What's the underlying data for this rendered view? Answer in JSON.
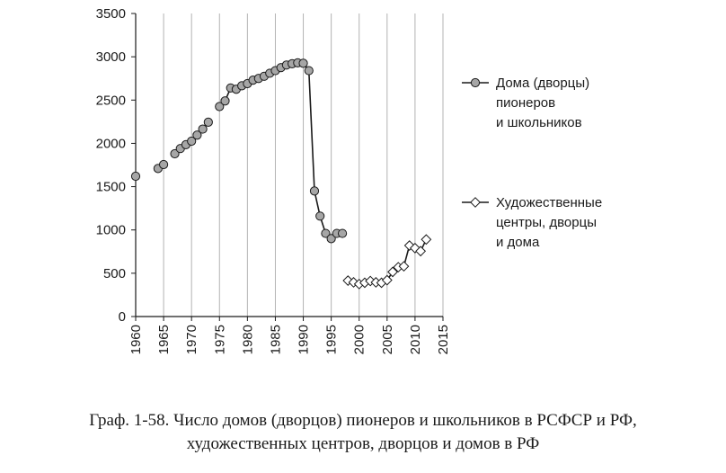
{
  "chart_data": {
    "type": "line",
    "title": "",
    "xlabel": "",
    "ylabel": "",
    "xlim": [
      1960,
      2015
    ],
    "ylim": [
      0,
      3500
    ],
    "xticks": [
      "1960",
      "1965",
      "1970",
      "1975",
      "1980",
      "1985",
      "1990",
      "1995",
      "2000",
      "2005",
      "2010",
      "2015"
    ],
    "yticks": [
      "0",
      "500",
      "1000",
      "1500",
      "2000",
      "2500",
      "3000",
      "3500"
    ],
    "grid": "vertical",
    "legend_placement": "right",
    "series": [
      {
        "name": "Дома (дворцы) пионеров и школьников",
        "legend_lines": [
          "Дома (дворцы)",
          "пионеров",
          "и школьников"
        ],
        "marker": "circle",
        "marker_fill": "#a6a6a6",
        "line_color": "#1a1a1a",
        "segments": [
          [
            [
              1960,
              1620
            ]
          ],
          [
            [
              1964,
              1710
            ],
            [
              1965,
              1755
            ]
          ],
          [
            [
              1967,
              1880
            ],
            [
              1968,
              1940
            ],
            [
              1969,
              1985
            ],
            [
              1970,
              2025
            ],
            [
              1971,
              2095
            ],
            [
              1972,
              2165
            ],
            [
              1973,
              2245
            ]
          ],
          [
            [
              1975,
              2425
            ],
            [
              1976,
              2490
            ],
            [
              1977,
              2640
            ],
            [
              1978,
              2625
            ],
            [
              1979,
              2665
            ],
            [
              1980,
              2690
            ],
            [
              1981,
              2730
            ],
            [
              1982,
              2750
            ],
            [
              1983,
              2775
            ],
            [
              1984,
              2810
            ],
            [
              1985,
              2840
            ],
            [
              1986,
              2875
            ],
            [
              1987,
              2905
            ],
            [
              1988,
              2920
            ],
            [
              1989,
              2930
            ],
            [
              1990,
              2925
            ],
            [
              1991,
              2840
            ],
            [
              1992,
              1450
            ],
            [
              1993,
              1160
            ],
            [
              1994,
              960
            ],
            [
              1995,
              900
            ],
            [
              1996,
              960
            ],
            [
              1997,
              960
            ]
          ]
        ]
      },
      {
        "name": "Художественные центры, дворцы и дома",
        "legend_lines": [
          "Художественные",
          "центры, дворцы",
          "и дома"
        ],
        "marker": "diamond",
        "marker_fill": "#ffffff",
        "line_color": "#1a1a1a",
        "segments": [
          [
            [
              1998,
              415
            ],
            [
              1999,
              395
            ],
            [
              2000,
              375
            ],
            [
              2001,
              390
            ],
            [
              2002,
              410
            ],
            [
              2003,
              395
            ],
            [
              2004,
              390
            ],
            [
              2005,
              420
            ],
            [
              2006,
              515
            ],
            [
              2007,
              570
            ],
            [
              2008,
              580
            ],
            [
              2009,
              820
            ],
            [
              2010,
              790
            ],
            [
              2011,
              755
            ],
            [
              2012,
              890
            ]
          ]
        ]
      }
    ]
  },
  "caption": {
    "line1": "Граф. 1-58. Число домов (дворцов) пионеров и школьников в РСФСР и РФ,",
    "line2": "художественных центров, дворцов и домов в РФ"
  }
}
